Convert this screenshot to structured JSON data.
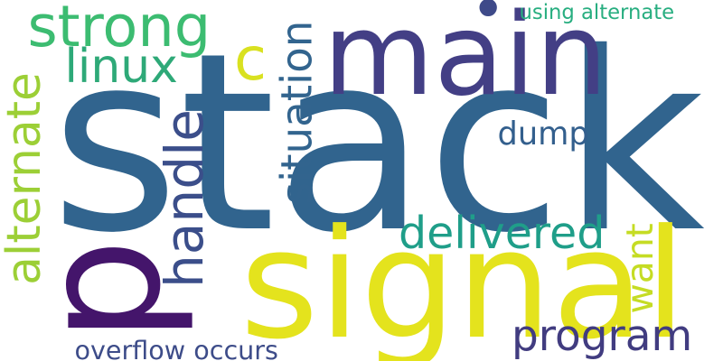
{
  "words": [
    {
      "text": "stack",
      "color": "#31648e"
    },
    {
      "text": "p",
      "color": "#44156b"
    },
    {
      "text": "signal",
      "color": "#e4e31d"
    },
    {
      "text": "main",
      "color": "#433f85"
    },
    {
      "text": "strong",
      "color": "#3cbc71"
    },
    {
      "text": "alternate",
      "color": "#9ccf36"
    },
    {
      "text": "handle",
      "color": "#3b4e8a"
    },
    {
      "text": "situation",
      "color": "#32648e"
    },
    {
      "text": "linux",
      "color": "#2ea978"
    },
    {
      "text": "c",
      "color": "#d9e120"
    },
    {
      "text": "dump",
      "color": "#335f8d"
    },
    {
      "text": "delivered",
      "color": "#1f9e89"
    },
    {
      "text": "want",
      "color": "#c5dc24"
    },
    {
      "text": "program",
      "color": "#413c80"
    },
    {
      "text": "using alternate",
      "color": "#28ae80"
    },
    {
      "text": "overflow occurs",
      "color": "#3d4c89"
    },
    {
      "text": "•",
      "color": "#3e4a89"
    }
  ]
}
